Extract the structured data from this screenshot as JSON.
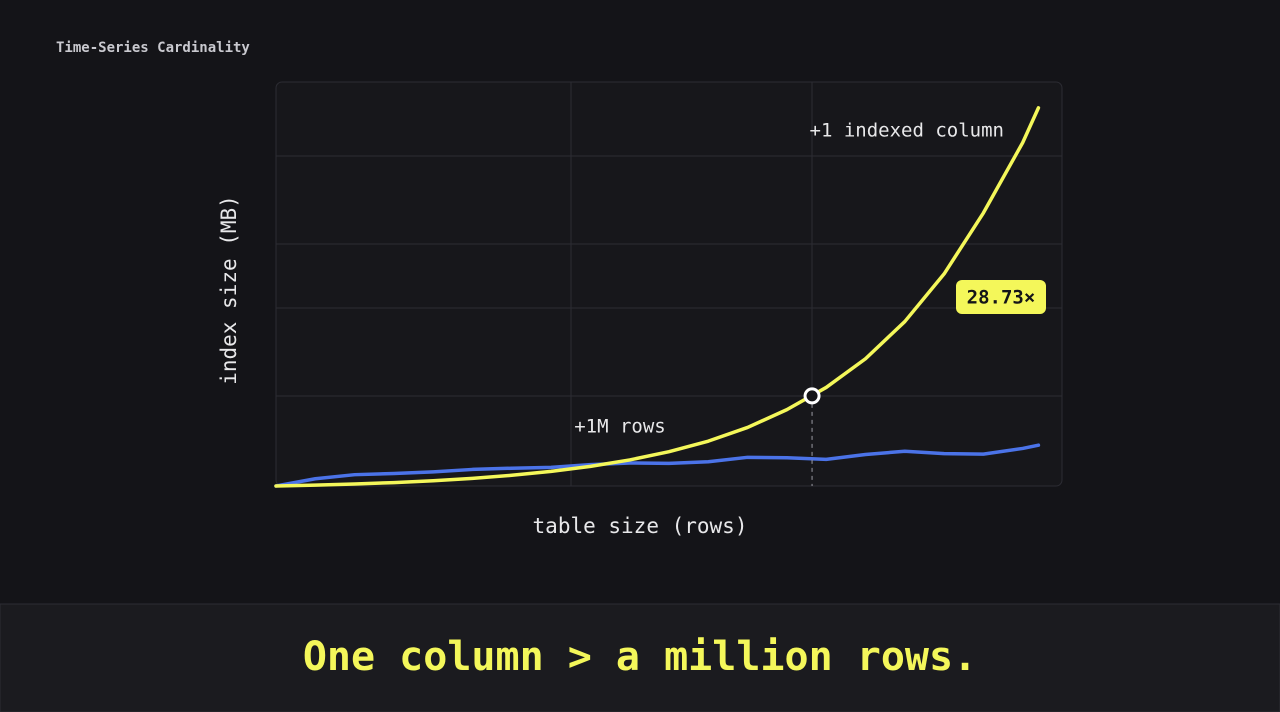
{
  "header": {
    "title": "Time-Series Cardinality"
  },
  "chart_data": {
    "type": "line",
    "x_label": "table size (rows)",
    "y_label": "index size (MB)",
    "x": [
      0,
      5,
      10,
      15,
      20,
      25,
      30,
      35,
      40,
      45,
      50,
      55,
      60,
      65,
      70,
      75,
      80,
      85,
      90,
      95,
      97
    ],
    "series": [
      {
        "color": "#f4f75a",
        "values": [
          0,
          0.22,
          0.49,
          0.85,
          1.31,
          1.89,
          2.65,
          3.61,
          4.86,
          6.45,
          8.5,
          11.1,
          14.5,
          18.9,
          24.4,
          31.5,
          40.7,
          52.5,
          67.6,
          85,
          93.6
        ]
      },
      {
        "color": "#4b73e8",
        "values": [
          0,
          1.8,
          2.8,
          3.1,
          3.5,
          4.1,
          4.4,
          4.6,
          5.3,
          5.7,
          5.6,
          6.0,
          7.1,
          7.0,
          6.6,
          7.8,
          8.6,
          8.0,
          7.9,
          9.3,
          10.1
        ]
      }
    ],
    "xlim": [
      0,
      100
    ],
    "ylim": [
      0,
      100
    ],
    "highlight": {
      "x": 68.2,
      "y": 22.3
    },
    "annotations": [
      "+1 indexed column",
      "+1M rows",
      "28.73×"
    ]
  },
  "banner": {
    "text": "One column > a million rows."
  }
}
